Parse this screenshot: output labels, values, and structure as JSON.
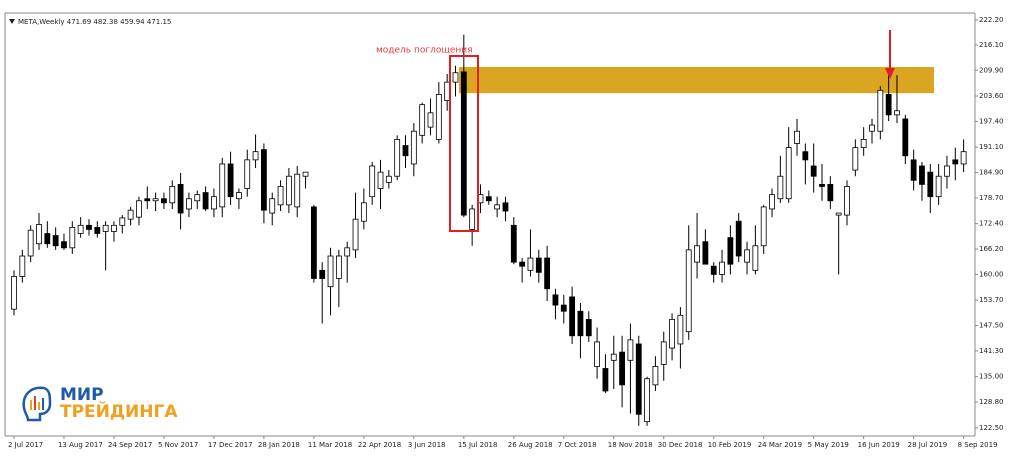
{
  "chart_data": {
    "type": "candlestick",
    "title": "META,Weekly  471.69 482.38 459.94 471.15",
    "annotation": "модель поглощения",
    "up_color": "#ffffff",
    "down_color": "#000000",
    "zone_color": "#daa520",
    "highlight_zone": [
      204.3,
      210.7
    ],
    "categories": [
      "2 Jul 2017",
      null,
      null,
      null,
      null,
      null,
      "13 Aug 2017",
      null,
      null,
      null,
      null,
      null,
      "24 Sep 2017",
      null,
      null,
      null,
      null,
      null,
      "5 Nov 2017",
      null,
      null,
      null,
      null,
      null,
      "17 Dec 2017",
      null,
      null,
      null,
      null,
      null,
      "28 Jan 2018",
      null,
      null,
      null,
      null,
      null,
      "11 Mar 2018",
      null,
      null,
      null,
      null,
      null,
      "22 Apr 2018",
      null,
      null,
      null,
      null,
      null,
      "3 Jun 2018",
      null,
      null,
      null,
      null,
      null,
      "15 Jul 2018",
      null,
      null,
      null,
      null,
      null,
      "26 Aug 2018",
      null,
      null,
      null,
      null,
      null,
      "7 Oct 2018",
      null,
      null,
      null,
      null,
      null,
      "18 Nov 2018",
      null,
      null,
      null,
      null,
      null,
      "30 Dec 2018",
      null,
      null,
      null,
      null,
      null,
      "10 Feb 2019",
      null,
      null,
      null,
      null,
      null,
      "24 Mar 2019",
      null,
      null,
      null,
      null,
      null,
      "5 May 2019",
      null,
      null,
      null,
      null,
      null,
      "16 Jun 2019",
      null,
      null,
      null,
      null,
      null,
      "28 Jul 2019",
      null,
      null,
      null,
      null,
      null,
      "8 Sep 2019"
    ],
    "open": [
      151.5,
      159.5,
      164.5,
      167.5,
      170,
      169.5,
      168,
      166.5,
      170,
      172,
      171.5,
      170.5,
      170.5,
      172,
      173.5,
      174,
      178.5,
      178,
      178.5,
      177.5,
      182,
      176,
      178,
      180,
      176,
      176.5,
      187,
      178.5,
      181,
      188,
      190.5,
      175,
      177,
      177,
      176.5,
      184,
      176.5,
      161,
      157,
      159,
      164.5,
      166,
      173,
      179,
      181,
      182.5,
      184,
      191.5,
      187,
      194,
      196,
      193,
      202.5,
      207,
      209.5,
      171,
      177.5,
      179,
      176,
      177.5,
      172,
      163,
      161,
      164,
      164,
      155,
      152.5,
      154.5,
      151,
      149,
      137.5,
      137,
      139,
      141,
      139,
      143,
      124,
      133,
      138,
      142,
      143,
      146,
      163,
      168,
      162,
      160,
      169,
      173,
      163,
      161,
      167,
      176,
      178.5,
      178.5,
      192,
      190,
      186.5,
      182,
      182,
      174.5,
      174.5,
      185.5,
      191,
      195,
      195,
      204,
      199,
      198,
      188,
      186.5,
      185,
      179,
      184,
      188,
      187
    ],
    "high": [
      161,
      166,
      172,
      175,
      173,
      171.5,
      170,
      173,
      174,
      173.5,
      173,
      173,
      173,
      174.5,
      176.5,
      179,
      181.5,
      180,
      180,
      183,
      184.8,
      180,
      180.5,
      181.5,
      181,
      188.5,
      190,
      181,
      190.5,
      194.2,
      192,
      180,
      183,
      186,
      186.5,
      185,
      177,
      163,
      166.5,
      166,
      168,
      180,
      181,
      187.5,
      188,
      185.5,
      194,
      194,
      197,
      202,
      203,
      207,
      209,
      211,
      218.6,
      177,
      182,
      180.5,
      179,
      179,
      174,
      164,
      171,
      166,
      167,
      156.5,
      155,
      157,
      153,
      151,
      147,
      140.5,
      145,
      145,
      148,
      145,
      135,
      140,
      146,
      150.5,
      152,
      172,
      175,
      171,
      163,
      166,
      172,
      175,
      168,
      172,
      177,
      181,
      189,
      196,
      198,
      192,
      192,
      187,
      184,
      175,
      183,
      193,
      196,
      198,
      206,
      209,
      208.7,
      199,
      190.5,
      187.5,
      187,
      187,
      189,
      191,
      193
    ],
    "low": [
      150,
      158,
      163,
      166,
      166.5,
      166,
      166,
      165,
      169,
      169.5,
      169,
      161,
      168,
      170,
      172,
      172,
      176,
      175.5,
      176,
      176,
      171,
      174,
      176,
      175.5,
      174,
      174,
      177,
      176,
      179,
      186,
      172.5,
      172,
      175.5,
      175,
      174,
      181,
      158,
      148,
      150,
      152,
      158,
      164,
      171,
      177,
      176,
      181,
      183,
      186,
      184,
      192,
      194,
      192,
      200,
      203.5,
      174,
      167,
      175,
      177,
      174,
      173,
      162.5,
      158,
      159.5,
      158,
      153.5,
      149,
      148,
      143,
      139.5,
      143.5,
      134.5,
      131,
      132,
      127.5,
      126,
      123,
      123,
      131.5,
      134,
      139,
      137,
      144,
      159,
      163,
      158,
      158,
      160,
      163,
      160,
      160,
      165,
      174,
      177.5,
      177.5,
      189,
      182,
      180,
      178,
      176,
      160,
      172,
      184,
      189,
      192,
      193,
      197.5,
      197,
      187,
      180.5,
      178,
      175,
      177,
      181,
      183,
      185
    ],
    "close": [
      159.5,
      164.5,
      170.8,
      172.2,
      167.5,
      167,
      166.5,
      171.5,
      172,
      171,
      170,
      172,
      172,
      173.8,
      175.7,
      178,
      178,
      178.5,
      177.5,
      181.5,
      175,
      178.5,
      179.5,
      176,
      179,
      187,
      179,
      180,
      188,
      190,
      175.7,
      178.5,
      181.5,
      184,
      184.5,
      185,
      159,
      159,
      164.5,
      164.5,
      166.5,
      173.5,
      177.5,
      186.5,
      185,
      184,
      193,
      189,
      195,
      201.5,
      199.5,
      204,
      207,
      209.3,
      174.5,
      176,
      179.5,
      178,
      177,
      175.5,
      163,
      162,
      164,
      160.5,
      156.5,
      152.5,
      151,
      145,
      145,
      145,
      143.5,
      131.5,
      140.5,
      133,
      144,
      125.8,
      134.5,
      137.5,
      143.5,
      149,
      150,
      166,
      167,
      162.5,
      160,
      163,
      162.5,
      164.5,
      166,
      167,
      176.5,
      179.5,
      184,
      191,
      195,
      188,
      184,
      181.5,
      178,
      175,
      181.5,
      191,
      193,
      196.5,
      205,
      199,
      200,
      189,
      183,
      182,
      179,
      184,
      186.5,
      187,
      190
    ],
    "ylim": [
      120.5,
      223.9
    ],
    "yticks": [
      {
        "value": 222.2,
        "label": "222.20"
      },
      {
        "value": 216.1,
        "label": "216.10"
      },
      {
        "value": 209.9,
        "label": "209.90"
      },
      {
        "value": 203.6,
        "label": "203.60"
      },
      {
        "value": 197.4,
        "label": "197.40"
      },
      {
        "value": 191.1,
        "label": "191.10"
      },
      {
        "value": 184.9,
        "label": "184.90"
      },
      {
        "value": 178.7,
        "label": "178.70"
      },
      {
        "value": 172.4,
        "label": "172.40"
      },
      {
        "value": 166.2,
        "label": "166.20"
      },
      {
        "value": 160,
        "label": "160.00"
      },
      {
        "value": 153.7,
        "label": "153.70"
      },
      {
        "value": 147.5,
        "label": "147.50"
      },
      {
        "value": 141.3,
        "label": "141.30"
      },
      {
        "value": 135,
        "label": "135.00"
      },
      {
        "value": 128.8,
        "label": "128.80"
      },
      {
        "value": 122.5,
        "label": "122.50"
      }
    ]
  },
  "logo": {
    "line1": "МИР",
    "line2": "ТРЕЙДИНГА"
  }
}
